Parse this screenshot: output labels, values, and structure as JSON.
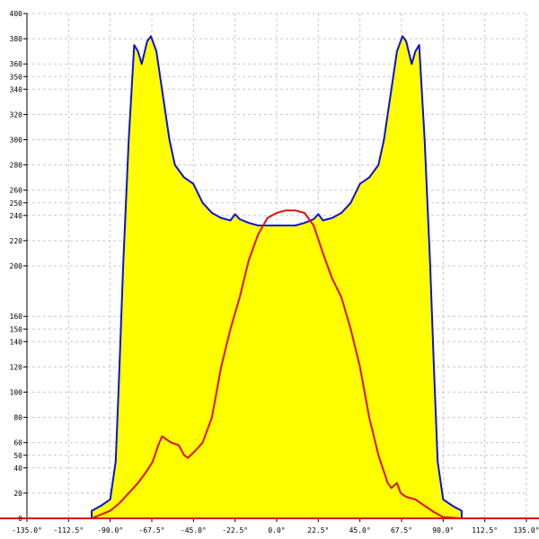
{
  "chart_data": {
    "type": "area",
    "title": "",
    "xlabel": "",
    "ylabel": "",
    "xlim": [
      -135,
      135
    ],
    "ylim": [
      0,
      400
    ],
    "grid": true,
    "x_ticks": [
      -135,
      -112.5,
      -90,
      -67.5,
      -45,
      -22.5,
      0,
      22.5,
      45,
      67.5,
      90,
      112.5,
      135
    ],
    "x_tick_labels": [
      "-135.0°",
      "-112.5°",
      "-90.0°",
      "-67.5°",
      "-45.0°",
      "-22.5°",
      "0.0°",
      "22.5°",
      "45.0°",
      "67.5°",
      "90.0°",
      "112.5°",
      "135.0°"
    ],
    "y_ticks": [
      0,
      20,
      40,
      50,
      60,
      80,
      100,
      120,
      140,
      150,
      160,
      200,
      220,
      240,
      250,
      260,
      280,
      300,
      320,
      340,
      350,
      360,
      380,
      400
    ],
    "y_tick_labels": [
      "0",
      "20",
      "40",
      "50",
      "60",
      "80",
      "100",
      "120",
      "140",
      "150",
      "160",
      "200",
      "220",
      "240",
      "250",
      "260",
      "280",
      "300",
      "320",
      "340",
      "350",
      "360",
      "380",
      "400"
    ],
    "series": [
      {
        "color": "#0a10e0",
        "fill": "#ffff00",
        "points": [
          [
            -100,
            0
          ],
          [
            -100,
            6
          ],
          [
            -95,
            10
          ],
          [
            -90,
            15
          ],
          [
            -87,
            45
          ],
          [
            -85,
            120
          ],
          [
            -83,
            200
          ],
          [
            -80,
            300
          ],
          [
            -77,
            375
          ],
          [
            -75,
            370
          ],
          [
            -73,
            360
          ],
          [
            -70,
            378
          ],
          [
            -68,
            382
          ],
          [
            -65,
            370
          ],
          [
            -62,
            340
          ],
          [
            -58,
            300
          ],
          [
            -55,
            280
          ],
          [
            -50,
            270
          ],
          [
            -45,
            265
          ],
          [
            -40,
            250
          ],
          [
            -35,
            242
          ],
          [
            -30,
            238
          ],
          [
            -25,
            236
          ],
          [
            -22.5,
            241
          ],
          [
            -20,
            237
          ],
          [
            -15,
            234
          ],
          [
            -10,
            232
          ],
          [
            0,
            232
          ],
          [
            10,
            232
          ],
          [
            15,
            234
          ],
          [
            20,
            237
          ],
          [
            22.5,
            241
          ],
          [
            25,
            236
          ],
          [
            30,
            238
          ],
          [
            35,
            242
          ],
          [
            40,
            250
          ],
          [
            45,
            265
          ],
          [
            50,
            270
          ],
          [
            55,
            280
          ],
          [
            58,
            300
          ],
          [
            62,
            340
          ],
          [
            65,
            370
          ],
          [
            68,
            382
          ],
          [
            70,
            378
          ],
          [
            73,
            360
          ],
          [
            75,
            370
          ],
          [
            77,
            375
          ],
          [
            80,
            300
          ],
          [
            83,
            200
          ],
          [
            85,
            120
          ],
          [
            87,
            45
          ],
          [
            90,
            15
          ],
          [
            95,
            10
          ],
          [
            100,
            6
          ],
          [
            100,
            0
          ]
        ]
      },
      {
        "color": "#e01010",
        "fill": "none",
        "points": [
          [
            -100,
            0
          ],
          [
            -95,
            3
          ],
          [
            -90,
            6
          ],
          [
            -85,
            12
          ],
          [
            -80,
            20
          ],
          [
            -75,
            28
          ],
          [
            -70,
            38
          ],
          [
            -67,
            45
          ],
          [
            -64,
            58
          ],
          [
            -62,
            65
          ],
          [
            -60,
            63
          ],
          [
            -57,
            60
          ],
          [
            -53,
            58
          ],
          [
            -50,
            50
          ],
          [
            -48,
            48
          ],
          [
            -45,
            52
          ],
          [
            -40,
            60
          ],
          [
            -35,
            80
          ],
          [
            -30,
            120
          ],
          [
            -25,
            150
          ],
          [
            -20,
            175
          ],
          [
            -15,
            205
          ],
          [
            -10,
            225
          ],
          [
            -5,
            238
          ],
          [
            0,
            242
          ],
          [
            5,
            244
          ],
          [
            10,
            244
          ],
          [
            15,
            242
          ],
          [
            20,
            232
          ],
          [
            25,
            210
          ],
          [
            30,
            190
          ],
          [
            35,
            175
          ],
          [
            40,
            150
          ],
          [
            45,
            120
          ],
          [
            50,
            80
          ],
          [
            55,
            50
          ],
          [
            60,
            28
          ],
          [
            62,
            24
          ],
          [
            65,
            28
          ],
          [
            67,
            20
          ],
          [
            70,
            17
          ],
          [
            75,
            15
          ],
          [
            80,
            10
          ],
          [
            85,
            5
          ],
          [
            90,
            1
          ],
          [
            100,
            0
          ]
        ]
      }
    ]
  }
}
